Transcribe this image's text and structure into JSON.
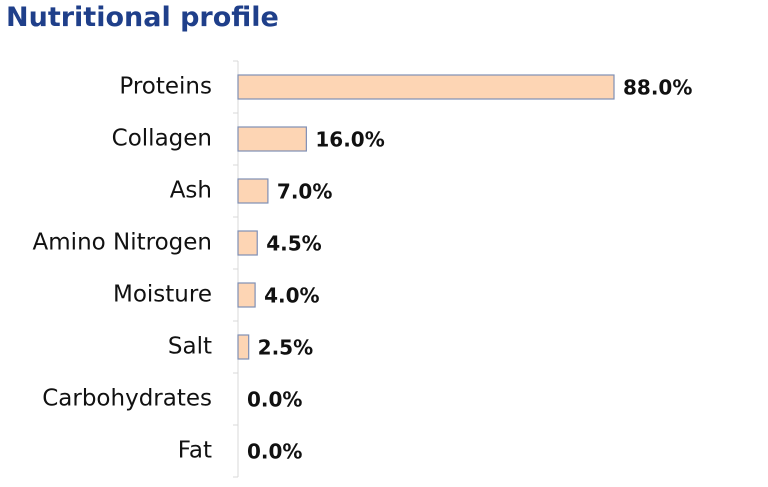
{
  "chart_data": {
    "type": "bar",
    "orientation": "horizontal",
    "title": "Nutritional profile",
    "categories": [
      "Proteins",
      "Collagen",
      "Ash",
      "Amino Nitrogen",
      "Moisture",
      "Salt",
      "Carbohydrates",
      "Fat"
    ],
    "values": [
      88,
      16,
      7,
      4.5,
      4,
      2.5,
      0,
      0
    ],
    "value_labels": [
      "88.0%",
      "16.0%",
      "7.0%",
      "4.5%",
      "4.0%",
      "2.5%",
      "0.0%",
      "0.0%"
    ],
    "color": "#fdd5b4",
    "grid": false
  }
}
